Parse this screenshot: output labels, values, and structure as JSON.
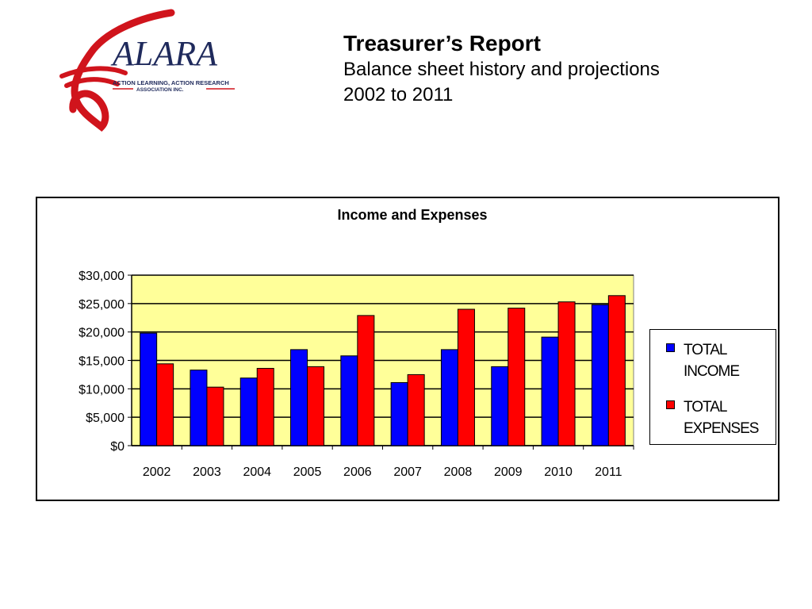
{
  "header": {
    "title": "Treasurer’s Report",
    "subtitle": "Balance sheet history and projections",
    "range": "2002 to 2011"
  },
  "logo": {
    "wordmark": "ALARA",
    "tagline_line1": "ACTION LEARNING, ACTION RESEARCH",
    "tagline_line2": "ASSOCIATION INC."
  },
  "colors": {
    "plot_background": "#ffff99",
    "income": "#0000ff",
    "expenses": "#ff0000",
    "logo_red": "#d0141c",
    "logo_navy": "#1f2a5c"
  },
  "chart_data": {
    "type": "bar",
    "title": "Income and Expenses",
    "categories": [
      "2002",
      "2003",
      "2004",
      "2005",
      "2006",
      "2007",
      "2008",
      "2009",
      "2010",
      "2011"
    ],
    "series": [
      {
        "name": "TOTAL INCOME",
        "color": "#0000ff",
        "values": [
          19800,
          13300,
          11900,
          16900,
          15800,
          11100,
          16900,
          13900,
          19100,
          24800
        ]
      },
      {
        "name": "TOTAL EXPENSES",
        "color": "#ff0000",
        "values": [
          14400,
          10300,
          13600,
          13900,
          22900,
          12500,
          24000,
          24200,
          25300,
          26400
        ]
      }
    ],
    "yticks": [
      "$0",
      "$5,000",
      "$10,000",
      "$15,000",
      "$20,000",
      "$25,000",
      "$30,000"
    ],
    "ylim": [
      0,
      30000
    ],
    "grid": true,
    "legend_position": "right",
    "legend_lines": [
      [
        "TOTAL",
        "INCOME"
      ],
      [
        "TOTAL",
        "EXPENSES"
      ]
    ]
  }
}
